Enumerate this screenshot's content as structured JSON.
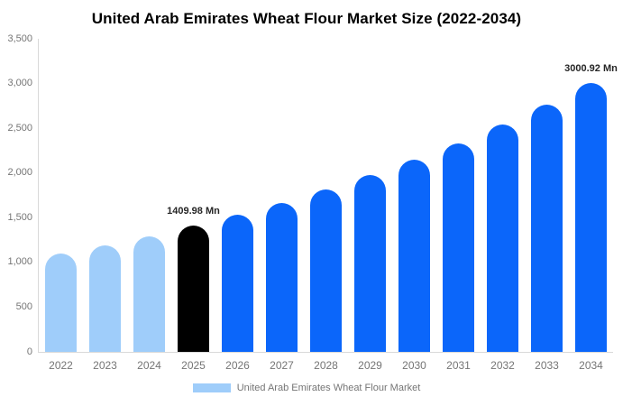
{
  "colors": {
    "historical_bar": "#9FCDFA",
    "forecast_bar": "#0B66FA",
    "highlight_bar": "#000000",
    "axis_line": "#D9D9D9",
    "tick_text": "#757575",
    "title_text": "#000000",
    "data_label_text": "#262626"
  },
  "chart_data": {
    "type": "bar",
    "title": "United Arab Emirates Wheat Flour Market Size (2022-2034)",
    "xlabel": "",
    "ylabel": "",
    "values_unit": "Mn",
    "categories": [
      "2022",
      "2023",
      "2024",
      "2025",
      "2026",
      "2027",
      "2028",
      "2029",
      "2030",
      "2031",
      "2032",
      "2033",
      "2034"
    ],
    "series": [
      {
        "name": "United Arab Emirates Wheat Flour Market",
        "values": [
          1096,
          1192,
          1296,
          1409.98,
          1533,
          1668,
          1814,
          1973,
          2146,
          2333,
          2538,
          2760,
          3000.92
        ]
      }
    ],
    "bar_colors": [
      "#9FCDFA",
      "#9FCDFA",
      "#9FCDFA",
      "#000000",
      "#0B66FA",
      "#0B66FA",
      "#0B66FA",
      "#0B66FA",
      "#0B66FA",
      "#0B66FA",
      "#0B66FA",
      "#0B66FA",
      "#0B66FA"
    ],
    "data_labels": [
      {
        "category": "2025",
        "text": "1409.98 Mn"
      },
      {
        "category": "2034",
        "text": "3000.92 Mn"
      }
    ],
    "ylim": [
      0,
      3500
    ],
    "y_ticks": [
      {
        "value": 0,
        "label": "0"
      },
      {
        "value": 500,
        "label": "500"
      },
      {
        "value": 1000,
        "label": "1,000"
      },
      {
        "value": 1500,
        "label": "1,500"
      },
      {
        "value": 2000,
        "label": "2,000"
      },
      {
        "value": 2500,
        "label": "2,500"
      },
      {
        "value": 3000,
        "label": "3,000"
      },
      {
        "value": 3500,
        "label": "3,500"
      }
    ],
    "grid": false,
    "legend_position": "bottom-center",
    "legend": {
      "items": [
        {
          "label": "United Arab Emirates Wheat Flour Market",
          "color": "#9FCDFA"
        }
      ]
    }
  }
}
